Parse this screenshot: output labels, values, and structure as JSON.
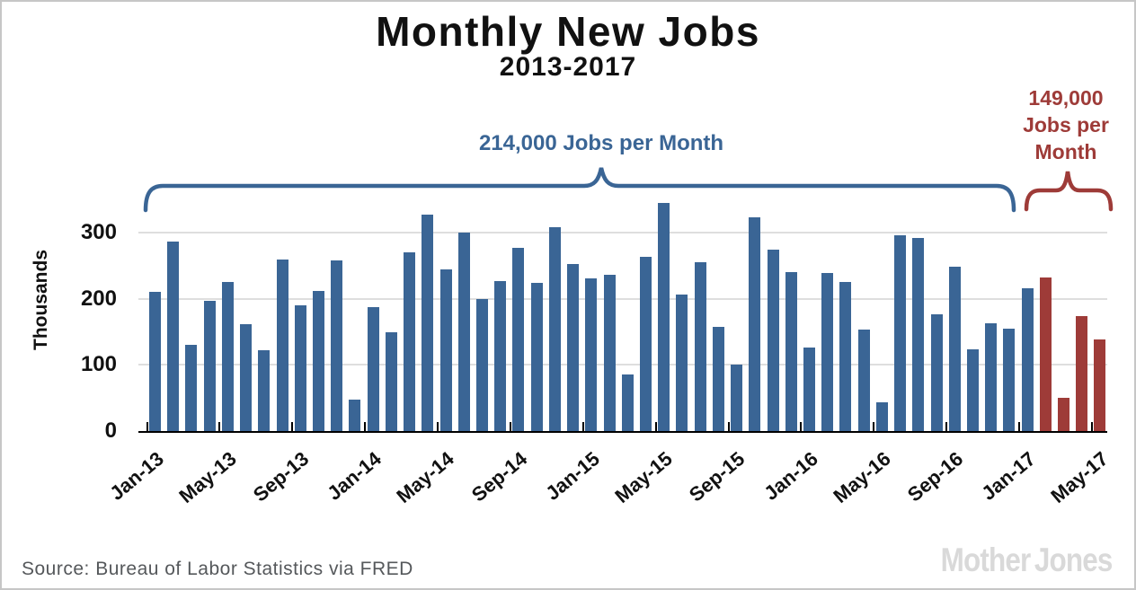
{
  "title": "Monthly New Jobs",
  "subtitle": "2013-2017",
  "annotations": {
    "blue": {
      "text": "214,000 Jobs per Month",
      "color": "#3A6595"
    },
    "red": {
      "lines": [
        "149,000",
        "Jobs per",
        "Month"
      ],
      "color": "#9E3B38"
    }
  },
  "chart_data": {
    "type": "bar",
    "title": "Monthly New Jobs",
    "subtitle": "2013-2017",
    "ylabel": "Thousands",
    "ylim": [
      0,
      350
    ],
    "yticks": [
      0,
      100,
      200,
      300
    ],
    "grid": "horizontal",
    "xtick_labels": [
      "Jan-13",
      "May-13",
      "Sep-13",
      "Jan-14",
      "May-14",
      "Sep-14",
      "Jan-15",
      "May-15",
      "Sep-15",
      "Jan-16",
      "May-16",
      "Sep-16",
      "Jan-17",
      "May-17"
    ],
    "categories": [
      "Jan-13",
      "Feb-13",
      "Mar-13",
      "Apr-13",
      "May-13",
      "Jun-13",
      "Jul-13",
      "Aug-13",
      "Sep-13",
      "Oct-13",
      "Nov-13",
      "Dec-13",
      "Jan-14",
      "Feb-14",
      "Mar-14",
      "Apr-14",
      "May-14",
      "Jun-14",
      "Jul-14",
      "Aug-14",
      "Sep-14",
      "Oct-14",
      "Nov-14",
      "Dec-14",
      "Jan-15",
      "Feb-15",
      "Mar-15",
      "Apr-15",
      "May-15",
      "Jun-15",
      "Jul-15",
      "Aug-15",
      "Sep-15",
      "Oct-15",
      "Nov-15",
      "Dec-15",
      "Jan-16",
      "Feb-16",
      "Mar-16",
      "Apr-16",
      "May-16",
      "Jun-16",
      "Jul-16",
      "Aug-16",
      "Sep-16",
      "Oct-16",
      "Nov-16",
      "Dec-16",
      "Jan-17",
      "Feb-17",
      "Mar-17",
      "Apr-17",
      "May-17"
    ],
    "values": [
      211,
      286,
      131,
      197,
      225,
      162,
      122,
      260,
      190,
      212,
      258,
      47,
      188,
      150,
      270,
      327,
      244,
      300,
      200,
      227,
      277,
      224,
      308,
      253,
      231,
      236,
      85,
      263,
      345,
      207,
      255,
      158,
      100,
      323,
      274,
      240,
      126,
      239,
      226,
      154,
      43,
      296,
      292,
      176,
      249,
      123,
      163,
      155,
      216,
      232,
      50,
      174,
      138
    ],
    "series_groups": [
      {
        "name": "214,000 Jobs per Month",
        "from": "Jan-13",
        "to": "Jan-17",
        "color": "#3A6595"
      },
      {
        "name": "149,000 Jobs per Month",
        "from": "Feb-17",
        "to": "May-17",
        "color": "#9E3B38"
      }
    ],
    "red_start_index": 49,
    "colors": {
      "blue": "#3A6595",
      "red": "#9E3B38",
      "grid": "#dedede",
      "axis": "#000000"
    }
  },
  "footer": {
    "source": "Source: Bureau of Labor Statistics via FRED",
    "logo": "Mother Jones"
  }
}
